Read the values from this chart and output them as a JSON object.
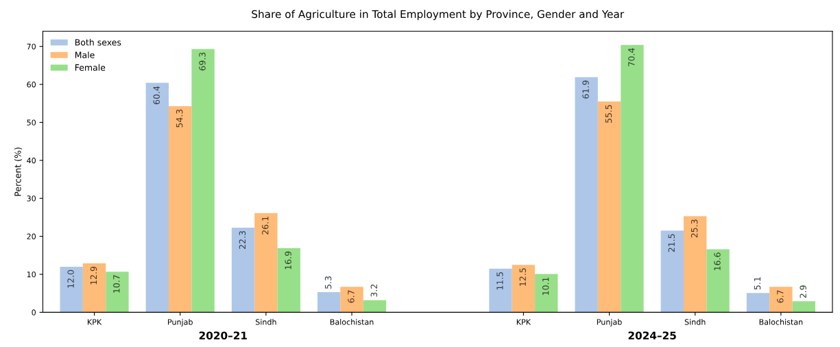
{
  "chart_data": {
    "type": "bar",
    "title": "Share of Agriculture in Total Employment by Province, Gender and Year",
    "ylabel": "Percent (%)",
    "categories": [
      "KPK",
      "Punjab",
      "Sindh",
      "Balochistan",
      null,
      "KPK",
      "Punjab",
      "Sindh",
      "Balochistan"
    ],
    "series": [
      {
        "name": "Both sexes",
        "color": "#aec7e8",
        "values": [
          12.0,
          60.4,
          22.3,
          5.3,
          null,
          11.5,
          61.9,
          21.5,
          5.1
        ],
        "value_labels": [
          "12.0",
          "60.4",
          "22.3",
          "5.3",
          null,
          "11.5",
          "61.9",
          "21.5",
          "5.1"
        ]
      },
      {
        "name": "Male",
        "color": "#ffbb78",
        "values": [
          12.9,
          54.3,
          26.1,
          6.7,
          null,
          12.5,
          55.5,
          25.3,
          6.7
        ],
        "value_labels": [
          "12.9",
          "54.3",
          "26.1",
          "6.7",
          null,
          "12.5",
          "55.5",
          "25.3",
          "6.7"
        ]
      },
      {
        "name": "Female",
        "color": "#98df8a",
        "values": [
          10.7,
          69.3,
          16.9,
          3.2,
          null,
          10.1,
          70.4,
          16.6,
          2.9
        ],
        "value_labels": [
          "10.7",
          "69.3",
          "16.9",
          "3.2",
          null,
          "10.1",
          "70.4",
          "16.6",
          "2.9"
        ]
      }
    ],
    "ylim": [
      0,
      74
    ],
    "yticks": [
      0,
      10,
      20,
      30,
      40,
      50,
      60,
      70
    ],
    "grid": false,
    "legend": "top left",
    "annotations": [
      "2020–21",
      "2024–25"
    ]
  }
}
